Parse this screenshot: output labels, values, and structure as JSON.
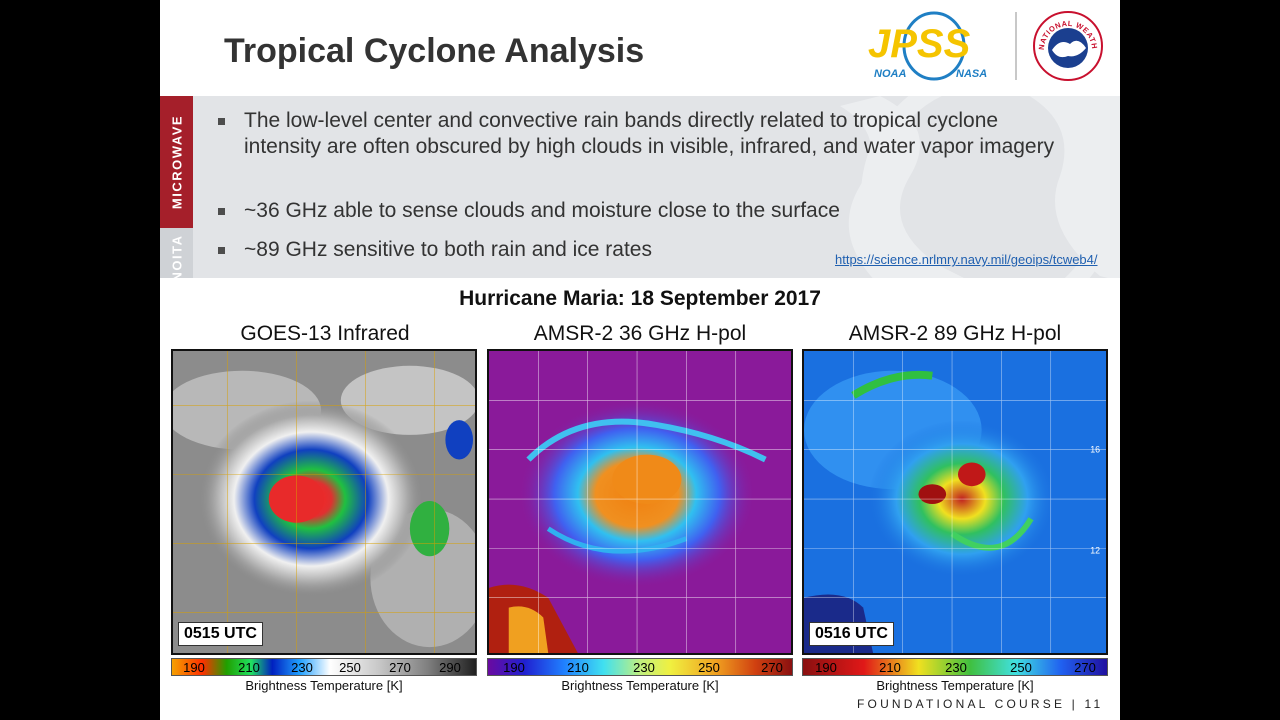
{
  "slide": {
    "title": "Tropical Cyclone Analysis",
    "logos": {
      "jpss_text": "JPSS",
      "jpss_noaa": "NOAA",
      "jpss_nasa": "NASA",
      "nws_text": "NATIONAL WEATHER SERVICE"
    },
    "tabs": {
      "active": "MICROWAVE",
      "next": "NOITA"
    },
    "bullets": [
      "The low-level center and convective rain bands directly related to tropical cyclone intensity are often obscured by high clouds in visible, infrared, and water vapor imagery",
      "~36 GHz able to sense clouds and moisture close to the surface",
      "~89 GHz sensitive to both rain and ice rates"
    ],
    "source_link": "https://science.nrlmry.navy.mil/geoips/tcweb4/",
    "event_title": "Hurricane Maria: 18 September 2017",
    "panels": [
      {
        "title": "GOES-13 Infrared",
        "time": "0515 UTC",
        "colorbar_ticks": [
          "190",
          "210",
          "230",
          "250",
          "270",
          "290"
        ],
        "colorbar_label": "Brightness Temperature [K]"
      },
      {
        "title": "AMSR-2 36 GHz H-pol",
        "time": "",
        "colorbar_ticks": [
          "190",
          "210",
          "230",
          "250",
          "270"
        ],
        "colorbar_label": "Brightness Temperature [K]"
      },
      {
        "title": "AMSR-2 89 GHz H-pol",
        "time": "0516 UTC",
        "colorbar_ticks": [
          "190",
          "210",
          "230",
          "250",
          "270"
        ],
        "colorbar_label": "Brightness Temperature [K]",
        "lat_labels": [
          "16",
          "12"
        ]
      }
    ],
    "footer": "FOUNDATIONAL COURSE  |  11",
    "colors": {
      "tab_active": "#a51f2a",
      "banner_bg": "#e2e4e7",
      "jpss_yellow": "#f5c400",
      "jpss_blue": "#1f7fc4",
      "nws_red": "#c8102e"
    }
  }
}
